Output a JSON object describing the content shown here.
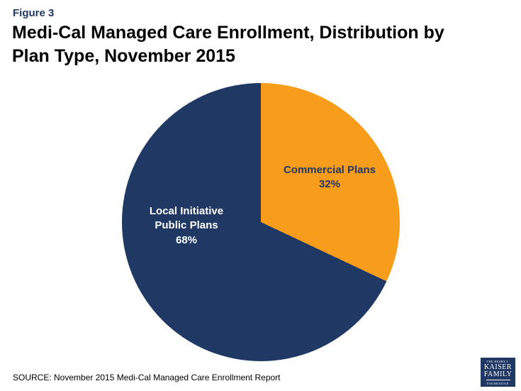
{
  "figure_label": "Figure 3",
  "title": "Medi-Cal Managed Care Enrollment, Distribution by Plan Type, November 2015",
  "source": "SOURCE: November 2015 Medi-Cal Managed Care Enrollment Report",
  "logo": {
    "line1": "THE HENRY J.",
    "line2": "KAISER",
    "line3": "FAMILY",
    "line4": "FOUNDATION"
  },
  "colors": {
    "navy": "#1f3864",
    "orange": "#f89c1c",
    "title_text": "#000000",
    "figure_label_text": "#1f3864"
  },
  "chart_data": {
    "type": "pie",
    "title": "Medi-Cal Managed Care Enrollment, Distribution by Plan Type, November 2015",
    "start_angle_deg": 0,
    "direction": "clockwise",
    "slices": [
      {
        "label": "Commercial Plans",
        "value": 32,
        "percent_label": "32%",
        "color": "#f89c1c",
        "label_color": "#1f3864"
      },
      {
        "label": "Local Initiative Public Plans",
        "value": 68,
        "percent_label": "68%",
        "color": "#1f3864",
        "label_color": "#ffffff"
      }
    ]
  }
}
